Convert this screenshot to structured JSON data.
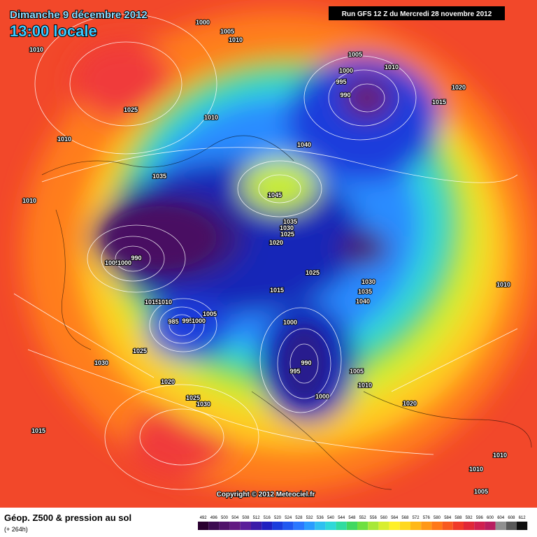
{
  "header": {
    "date": "Dimanche 9 décembre 2012",
    "time": "13:00 locale"
  },
  "run": "Run GFS 12 Z du Mercredi 28 novembre 2012",
  "copyright": "Copyright © 2012 Meteociel.fr",
  "footer": {
    "title": "Géop. Z500 & pression au sol",
    "subtitle": "(+ 264h)"
  },
  "scale": {
    "labels": [
      492,
      496,
      500,
      504,
      508,
      512,
      516,
      520,
      524,
      528,
      532,
      536,
      540,
      544,
      548,
      552,
      556,
      560,
      564,
      568,
      572,
      576,
      580,
      584,
      588,
      592,
      596,
      600,
      604,
      608,
      612
    ]
  },
  "pressure_labels": [
    1000,
    1005,
    1010,
    1010,
    1005,
    1010,
    1000,
    995,
    990,
    1020,
    1015,
    1025,
    1010,
    1010,
    1040,
    1035,
    1045,
    1010,
    1035,
    1030,
    1025,
    1020,
    990,
    1005,
    1000,
    1025,
    1030,
    1015,
    1035,
    1040,
    1015,
    1010,
    1005,
    1000,
    985,
    995,
    1000,
    1025,
    990,
    995,
    1005,
    1030,
    1020,
    1010,
    1000,
    1025,
    1030,
    1020,
    1015,
    1010,
    1010,
    1005,
    1010
  ]
}
